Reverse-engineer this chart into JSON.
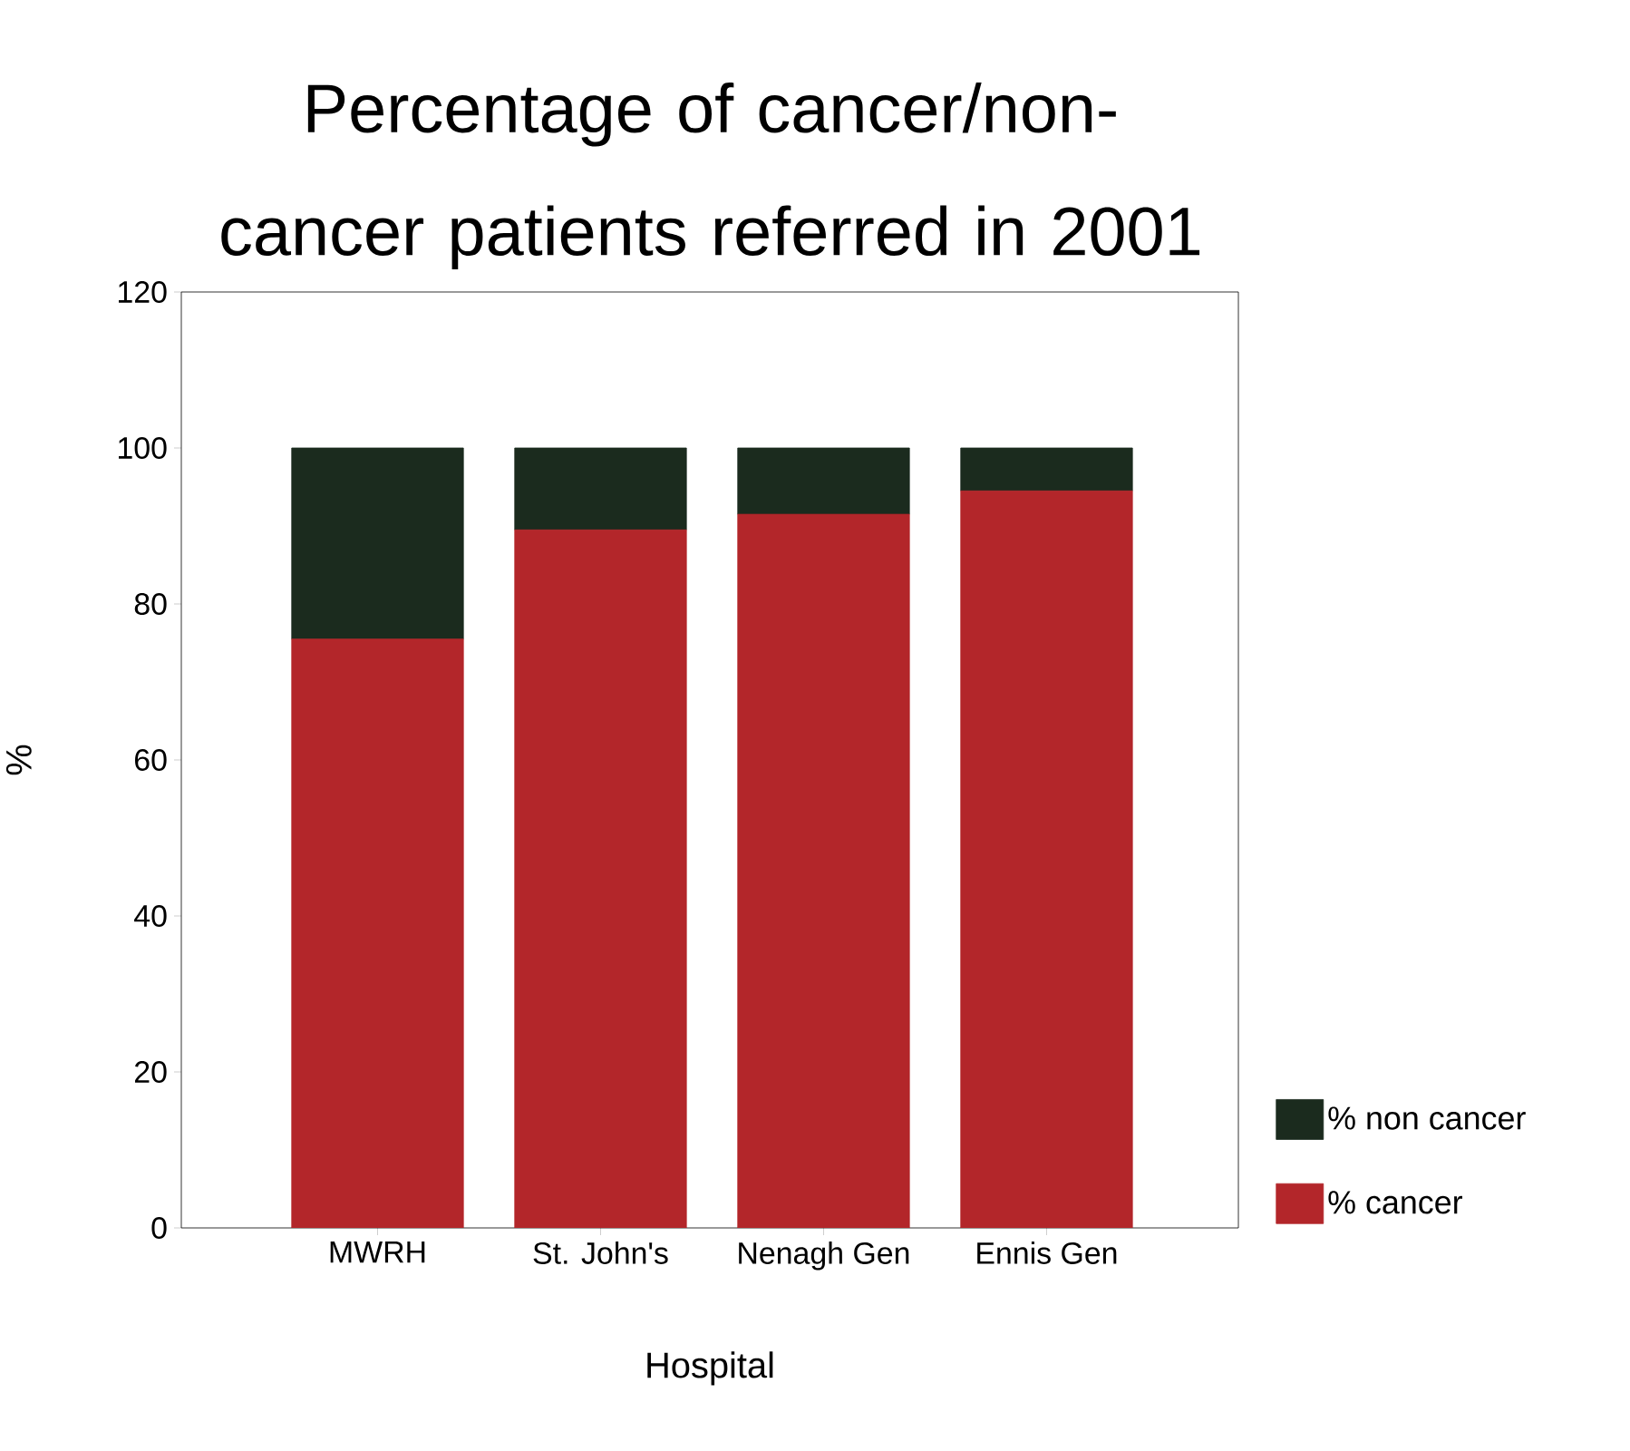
{
  "chart_data": {
    "type": "bar",
    "title": "Percentage of cancer/non-cancer patients referred in 2001",
    "xlabel": "Hospital",
    "ylabel": "%",
    "categories": [
      "MWRH",
      "St. John's",
      "Nenagh Gen",
      "Ennis Gen"
    ],
    "series": [
      {
        "name": "% cancer",
        "color": "#b3262a",
        "values": [
          75.5,
          89.5,
          91.5,
          94.5
        ]
      },
      {
        "name": "% non cancer",
        "color": "#1b2b1e",
        "values": [
          24.5,
          10.5,
          8.5,
          5.5
        ]
      }
    ],
    "stacked": true,
    "ylim": [
      0,
      120
    ],
    "yticks": [
      0,
      20,
      40,
      60,
      80,
      100,
      120
    ],
    "grid": false,
    "legend": "bottom right"
  }
}
